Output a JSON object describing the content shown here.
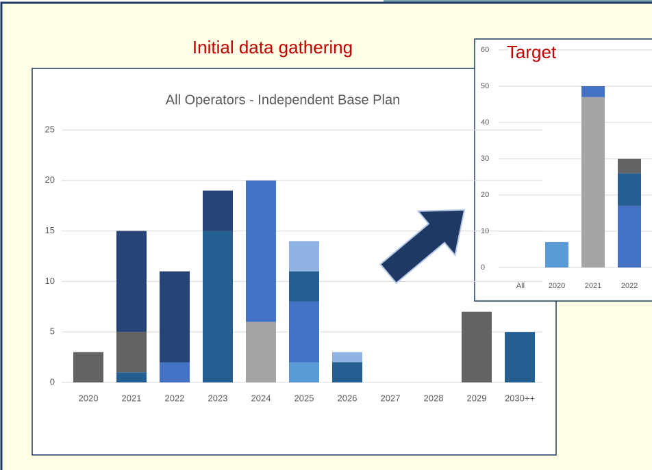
{
  "title": "Initial data gathering",
  "chart_data": [
    {
      "type": "bar",
      "stacked": true,
      "grid": true,
      "title": "All Operators - Independent Base Plan",
      "categories": [
        "2020",
        "2021",
        "2022",
        "2023",
        "2024",
        "2025",
        "2026",
        "2027",
        "2028",
        "2029",
        "2030++"
      ],
      "ylim": [
        0,
        25
      ],
      "yticks": [
        0,
        5,
        10,
        15,
        20,
        25
      ],
      "series": [
        {
          "color": "#5b9bd5",
          "values": [
            null,
            null,
            null,
            null,
            null,
            2,
            null,
            null,
            null,
            null,
            null
          ]
        },
        {
          "color": "#a5a5a5",
          "values": [
            null,
            null,
            null,
            null,
            6,
            null,
            null,
            null,
            null,
            null,
            null
          ]
        },
        {
          "color": "#4472c4",
          "values": [
            null,
            null,
            2,
            null,
            14,
            6,
            null,
            null,
            null,
            null,
            null
          ]
        },
        {
          "color": "#255e91",
          "values": [
            null,
            1,
            null,
            15,
            null,
            3,
            2,
            null,
            null,
            null,
            5
          ]
        },
        {
          "color": "#636363",
          "values": [
            3,
            4,
            null,
            null,
            null,
            null,
            null,
            null,
            null,
            7,
            null
          ]
        },
        {
          "color": "#264478",
          "values": [
            null,
            10,
            9,
            4,
            null,
            null,
            null,
            null,
            null,
            null,
            null
          ]
        },
        {
          "color": "#8fb4e3",
          "values": [
            null,
            null,
            null,
            null,
            null,
            3,
            1,
            null,
            null,
            null,
            null
          ]
        }
      ]
    },
    {
      "type": "bar",
      "stacked": true,
      "grid": true,
      "title": "Target",
      "categories": [
        "All",
        "2020",
        "2021",
        "2022"
      ],
      "ylim": [
        0,
        60
      ],
      "yticks": [
        0,
        10,
        20,
        30,
        40,
        50,
        60
      ],
      "series": [
        {
          "color": "#5b9bd5",
          "values": [
            null,
            7,
            null,
            null
          ]
        },
        {
          "color": "#a5a5a5",
          "values": [
            null,
            null,
            47,
            null
          ]
        },
        {
          "color": "#4472c4",
          "values": [
            null,
            null,
            3,
            17
          ]
        },
        {
          "color": "#255e91",
          "values": [
            null,
            null,
            null,
            9
          ]
        },
        {
          "color": "#636363",
          "values": [
            null,
            null,
            null,
            4
          ]
        }
      ]
    }
  ]
}
